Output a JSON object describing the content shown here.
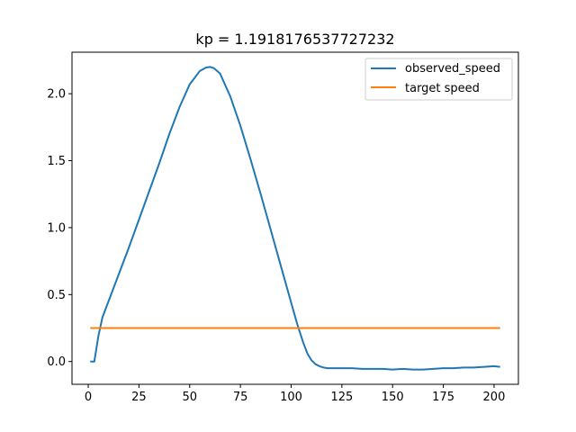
{
  "chart_data": {
    "type": "line",
    "title": "kp = 1.1918176537727232",
    "xlabel": "",
    "ylabel": "",
    "xlim": [
      -8,
      212
    ],
    "ylim": [
      -0.17,
      2.31
    ],
    "xticks": [
      0,
      25,
      50,
      75,
      100,
      125,
      150,
      175,
      200
    ],
    "yticks": [
      0.0,
      0.5,
      1.0,
      1.5,
      2.0
    ],
    "xtick_labels": [
      "0",
      "25",
      "50",
      "75",
      "100",
      "125",
      "150",
      "175",
      "200"
    ],
    "ytick_labels": [
      "0.0",
      "0.5",
      "1.0",
      "1.5",
      "2.0"
    ],
    "grid": false,
    "legend_position": "top-right",
    "series": [
      {
        "name": "observed_speed",
        "color": "#1f77b4",
        "x": [
          1,
          3,
          5,
          7,
          10,
          15,
          20,
          25,
          30,
          35,
          40,
          45,
          50,
          55,
          58,
          60,
          62,
          65,
          70,
          75,
          80,
          85,
          90,
          95,
          100,
          103,
          106,
          108,
          110,
          112,
          114,
          116,
          118,
          120,
          125,
          130,
          135,
          140,
          145,
          150,
          155,
          160,
          165,
          170,
          175,
          180,
          185,
          190,
          195,
          200,
          203
        ],
        "y": [
          0.0,
          0.0,
          0.19,
          0.33,
          0.45,
          0.65,
          0.85,
          1.06,
          1.27,
          1.48,
          1.7,
          1.9,
          2.07,
          2.17,
          2.195,
          2.2,
          2.19,
          2.15,
          1.98,
          1.76,
          1.51,
          1.25,
          0.98,
          0.71,
          0.44,
          0.28,
          0.14,
          0.06,
          0.01,
          -0.02,
          -0.035,
          -0.045,
          -0.05,
          -0.05,
          -0.05,
          -0.05,
          -0.055,
          -0.055,
          -0.055,
          -0.06,
          -0.055,
          -0.06,
          -0.06,
          -0.055,
          -0.05,
          -0.05,
          -0.045,
          -0.045,
          -0.04,
          -0.035,
          -0.04
        ]
      },
      {
        "name": "target speed",
        "color": "#ff7f0e",
        "x": [
          1,
          203
        ],
        "y": [
          0.25,
          0.25
        ]
      }
    ]
  }
}
